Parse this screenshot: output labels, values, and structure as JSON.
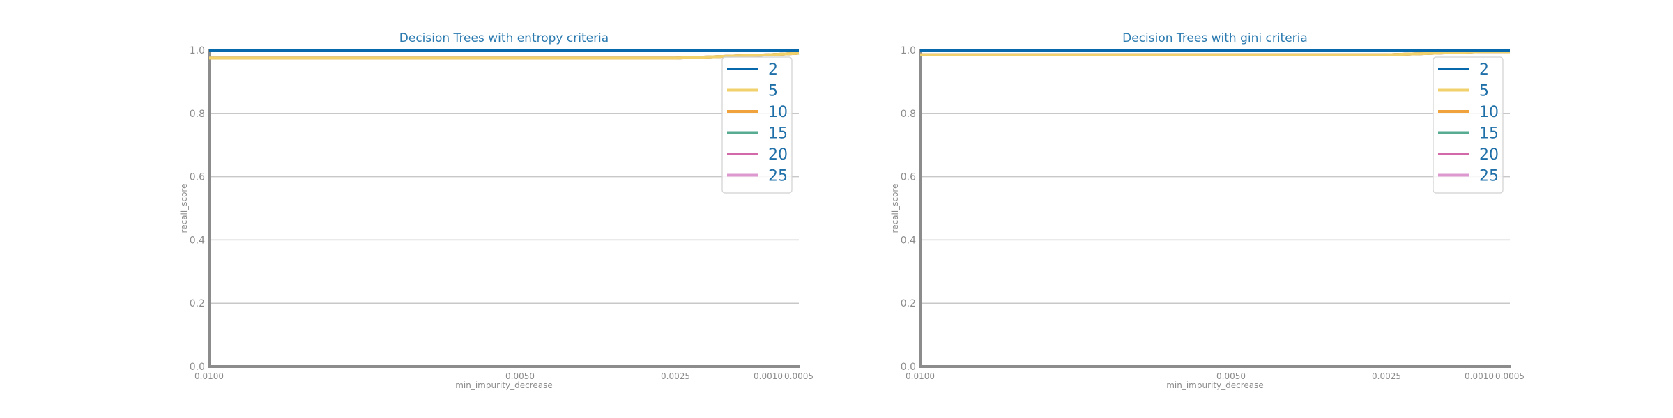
{
  "chart_data": [
    {
      "type": "line",
      "title": "Decision Trees with entropy criteria",
      "xlabel": "min_impurity_decrease",
      "ylabel": "recall_score",
      "x": [
        0.01,
        0.005,
        0.0025,
        0.001,
        0.0005
      ],
      "xtick_labels": [
        "0.0100",
        "0.0050",
        "0.0025",
        "0.0010",
        "0.0005"
      ],
      "xaxis_scale": "reversed, uneven (descending min_impurity_decrease)",
      "ylim": [
        0.0,
        1.0
      ],
      "yticks": [
        "0.0",
        "0.2",
        "0.4",
        "0.6",
        "0.8",
        "1.0"
      ],
      "grid": "horizontal",
      "legend_position": "top-right",
      "series": [
        {
          "name": "2",
          "color": "#0868ac",
          "values": [
            1.0,
            1.0,
            1.0,
            1.0,
            1.0
          ]
        },
        {
          "name": "5",
          "color": "#f0d16b",
          "values": [
            0.975,
            0.975,
            0.975,
            0.985,
            0.99
          ]
        },
        {
          "name": "10",
          "color": "#f0a23c",
          "values": [
            0.975,
            0.975,
            0.975,
            0.985,
            0.99
          ]
        },
        {
          "name": "15",
          "color": "#57ab91",
          "values": [
            0.975,
            0.975,
            0.975,
            0.985,
            0.99
          ]
        },
        {
          "name": "20",
          "color": "#d26aaa",
          "values": [
            0.975,
            0.975,
            0.975,
            0.985,
            0.99
          ]
        },
        {
          "name": "25",
          "color": "#dd99cf",
          "values": [
            0.975,
            0.975,
            0.975,
            0.985,
            0.99
          ]
        }
      ]
    },
    {
      "type": "line",
      "title": "Decision Trees with gini criteria",
      "xlabel": "min_impurity_decrease",
      "ylabel": "recall_score",
      "x": [
        0.01,
        0.005,
        0.0025,
        0.001,
        0.0005
      ],
      "xtick_labels": [
        "0.0100",
        "0.0050",
        "0.0025",
        "0.0010",
        "0.0005"
      ],
      "xaxis_scale": "reversed, uneven (descending min_impurity_decrease)",
      "ylim": [
        0.0,
        1.0
      ],
      "yticks": [
        "0.0",
        "0.2",
        "0.4",
        "0.6",
        "0.8",
        "1.0"
      ],
      "grid": "horizontal",
      "legend_position": "top-right",
      "series": [
        {
          "name": "2",
          "color": "#0868ac",
          "values": [
            1.0,
            1.0,
            1.0,
            1.0,
            1.0
          ]
        },
        {
          "name": "5",
          "color": "#f0d16b",
          "values": [
            0.985,
            0.985,
            0.985,
            0.995,
            0.995
          ]
        },
        {
          "name": "10",
          "color": "#f0a23c",
          "values": [
            0.985,
            0.985,
            0.985,
            0.995,
            0.995
          ]
        },
        {
          "name": "15",
          "color": "#57ab91",
          "values": [
            0.985,
            0.985,
            0.985,
            0.995,
            0.995
          ]
        },
        {
          "name": "20",
          "color": "#d26aaa",
          "values": [
            0.985,
            0.985,
            0.985,
            0.995,
            0.995
          ]
        },
        {
          "name": "25",
          "color": "#dd99cf",
          "values": [
            0.985,
            0.985,
            0.985,
            0.995,
            0.995
          ]
        }
      ]
    }
  ]
}
